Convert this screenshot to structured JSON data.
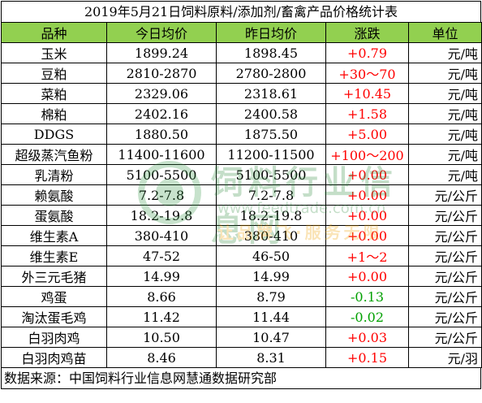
{
  "title": "2019年5月21日饲料原料/添加剂/畜禽产品价格统计表",
  "headers": [
    "品种",
    "今日均价",
    "昨日均价",
    "涨跌",
    "单位"
  ],
  "rows": [
    {
      "name": "玉米",
      "today": "1899.24",
      "yesterday": "1898.45",
      "change": "+0.79",
      "dir": "up",
      "unit": "元/吨"
    },
    {
      "name": "豆粕",
      "today": "2810-2870",
      "yesterday": "2780-2800",
      "change": "+30～70",
      "dir": "up",
      "unit": "元/吨"
    },
    {
      "name": "菜粕",
      "today": "2329.06",
      "yesterday": "2318.61",
      "change": "+10.45",
      "dir": "up",
      "unit": "元/吨"
    },
    {
      "name": "棉粕",
      "today": "2402.16",
      "yesterday": "2400.58",
      "change": "+1.58",
      "dir": "up",
      "unit": "元/吨"
    },
    {
      "name": "DDGS",
      "today": "1880.50",
      "yesterday": "1875.50",
      "change": "+5.00",
      "dir": "up",
      "unit": "元/吨"
    },
    {
      "name": "超级蒸汽鱼粉",
      "today": "11400-11600",
      "yesterday": "11200-11500",
      "change": "+100～200",
      "dir": "up",
      "unit": "元/吨"
    },
    {
      "name": "乳清粉",
      "today": "5100-5500",
      "yesterday": "5100-5500",
      "change": "+0.00",
      "dir": "up",
      "unit": "元/吨"
    },
    {
      "name": "赖氨酸",
      "today": "7.2-7.8",
      "yesterday": "7.2-7.8",
      "change": "+0.00",
      "dir": "up",
      "unit": "元/公斤"
    },
    {
      "name": "蛋氨酸",
      "today": "18.2-19.8",
      "yesterday": "18.2-19.8",
      "change": "+0.00",
      "dir": "up",
      "unit": "元/公斤"
    },
    {
      "name": "维生素A",
      "today": "380-410",
      "yesterday": "380-410",
      "change": "+0.00",
      "dir": "up",
      "unit": "元/公斤"
    },
    {
      "name": "维生素E",
      "today": "47-52",
      "yesterday": "46-50",
      "change": "+1～2",
      "dir": "up",
      "unit": "元/公斤"
    },
    {
      "name": "外三元毛猪",
      "today": "14.99",
      "yesterday": "14.99",
      "change": "+0.00",
      "dir": "up",
      "unit": "元/公斤"
    },
    {
      "name": "鸡蛋",
      "today": "8.66",
      "yesterday": "8.79",
      "change": "-0.13",
      "dir": "down",
      "unit": "元/公斤"
    },
    {
      "name": "淘汰蛋毛鸡",
      "today": "11.42",
      "yesterday": "11.44",
      "change": "-0.02",
      "dir": "down",
      "unit": "元/公斤"
    },
    {
      "name": "白羽肉鸡",
      "today": "10.50",
      "yesterday": "10.47",
      "change": "+0.03",
      "dir": "up",
      "unit": "元/公斤"
    },
    {
      "name": "白羽肉鸡苗",
      "today": "8.46",
      "yesterday": "8.31",
      "change": "+0.15",
      "dir": "up",
      "unit": "元/羽"
    }
  ],
  "source": "数据来源：中国饲料行业信息网慧通数据研究部",
  "watermark": {
    "name": "饲料行业信息网",
    "url": "www.feedtrade.com.cn",
    "slogan": "让品牌飞·服务无限"
  },
  "colors": {
    "header_bg": "#92d050",
    "up": "#ff0000",
    "down": "#00a000"
  }
}
